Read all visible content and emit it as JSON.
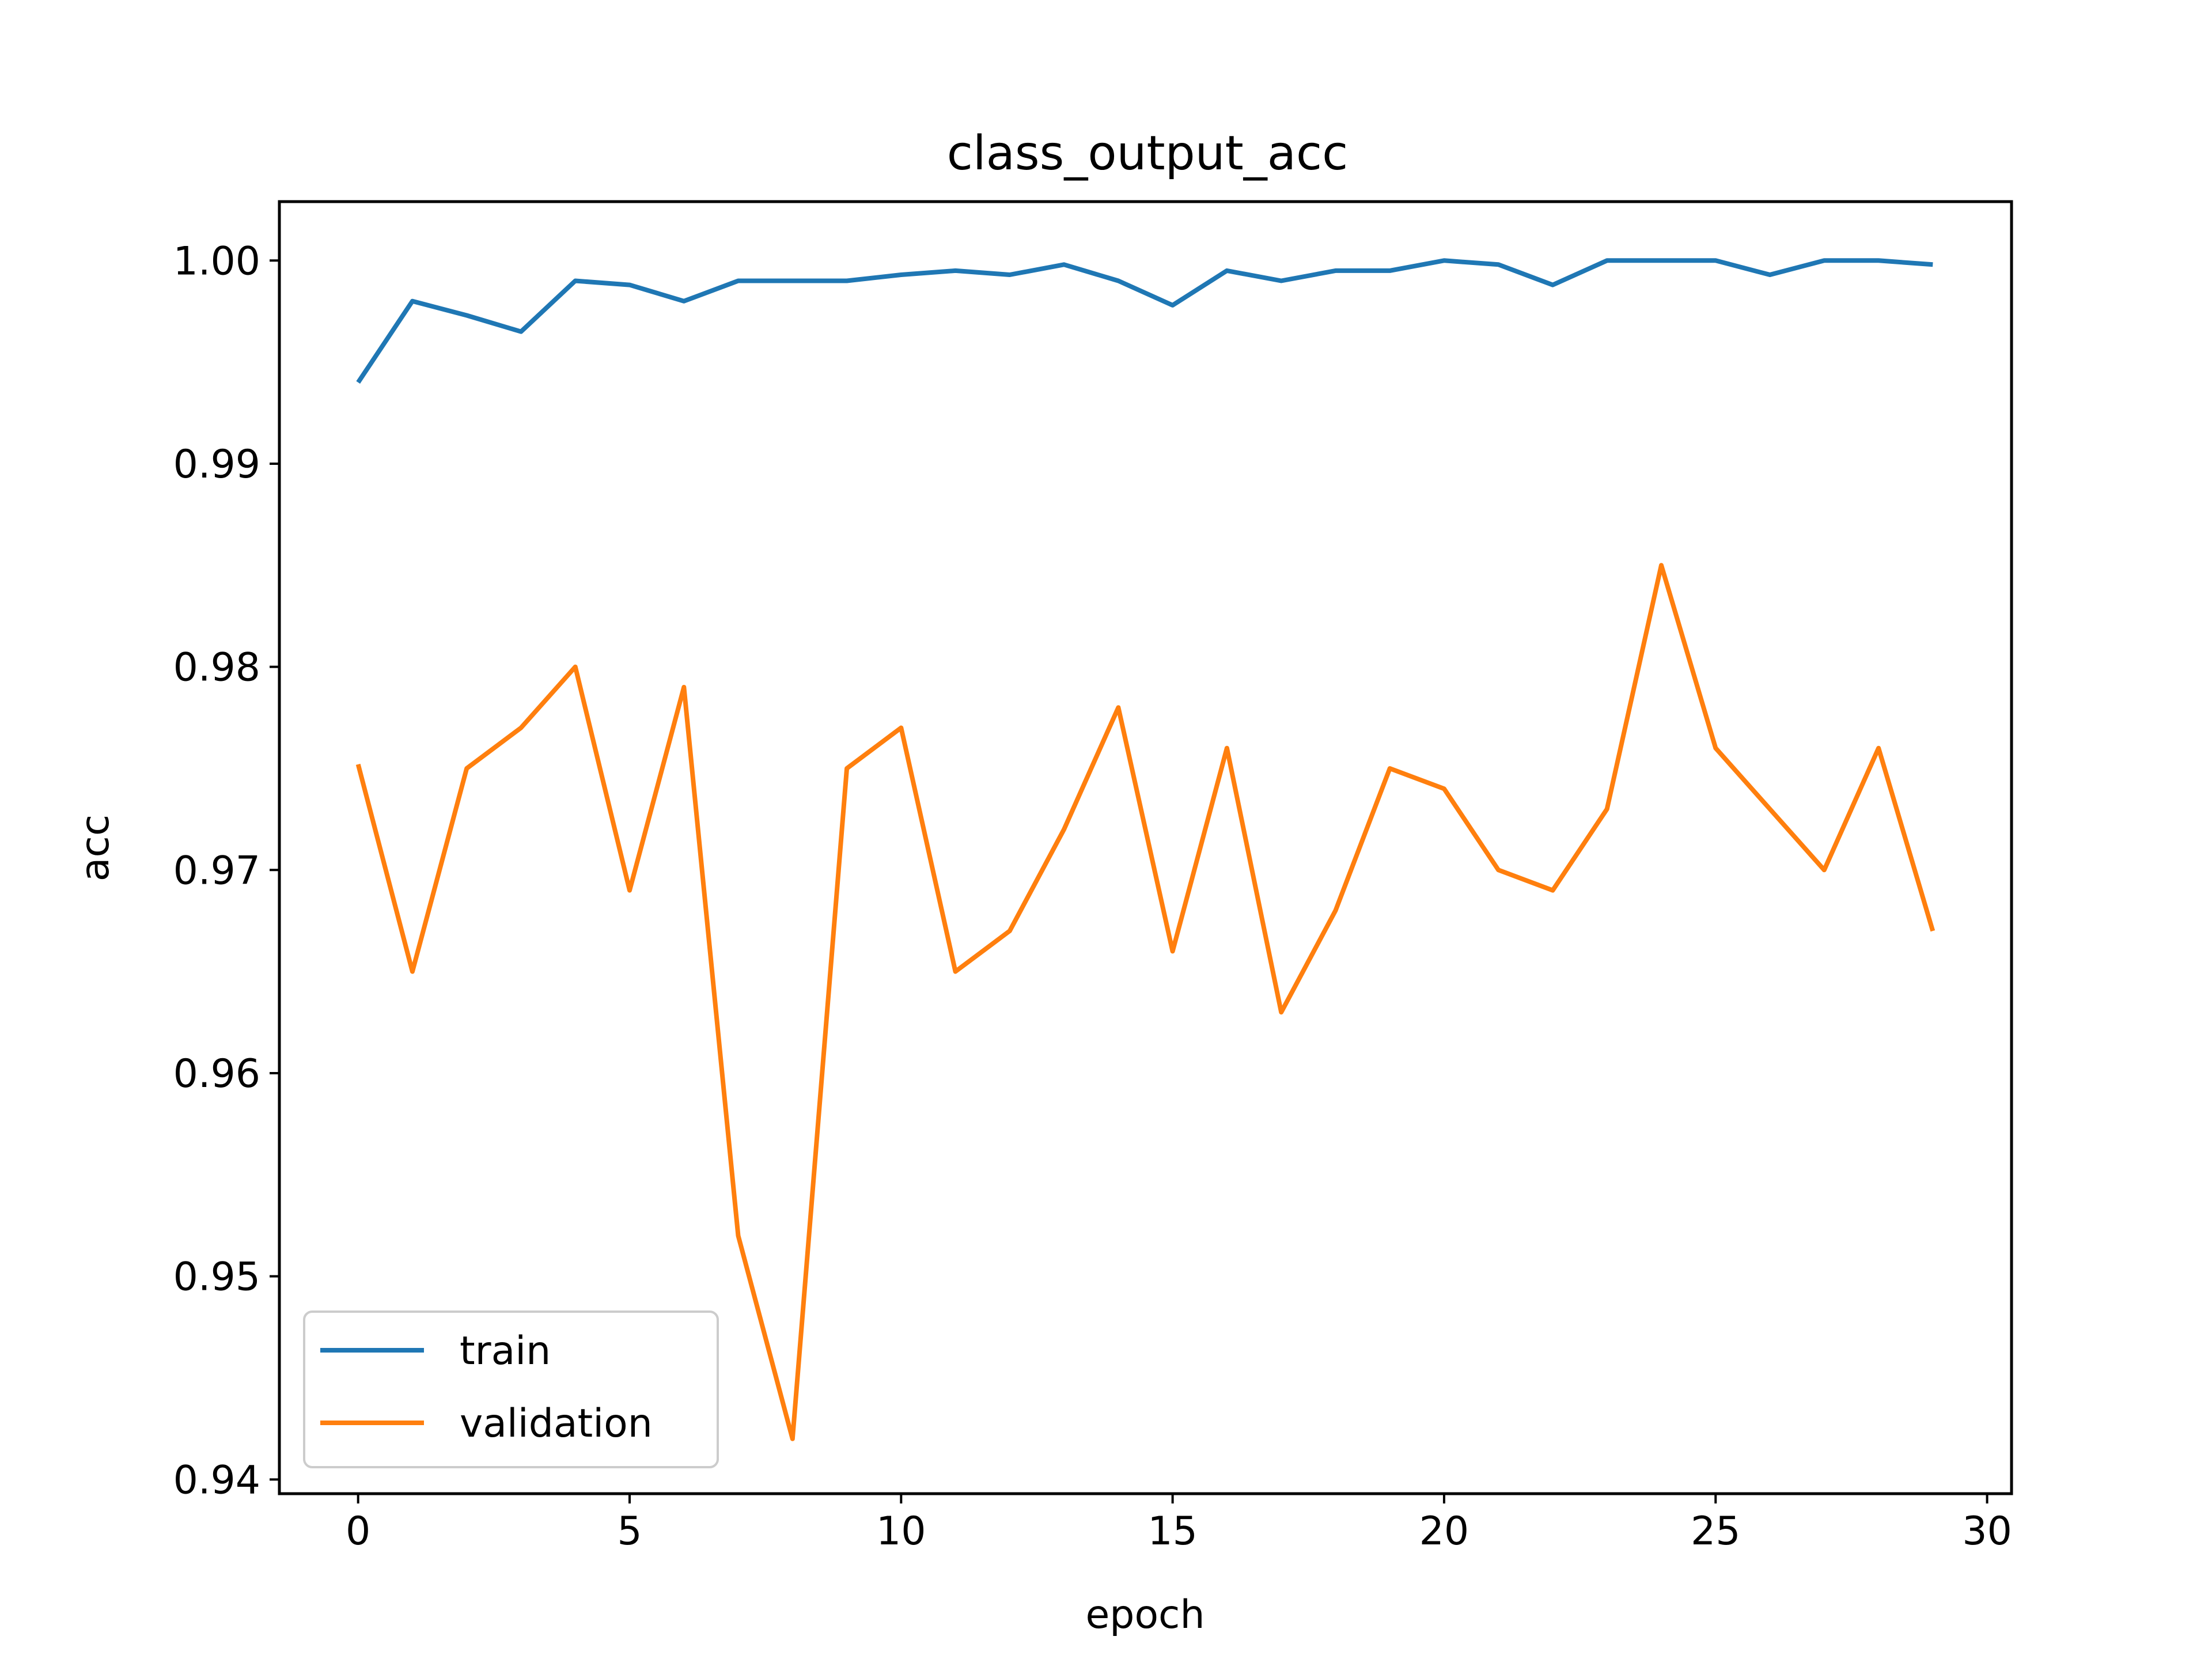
{
  "chart_data": {
    "type": "line",
    "title": "class_output_acc",
    "xlabel": "epoch",
    "ylabel": "acc",
    "xlim": [
      -1.45,
      30.45
    ],
    "ylim": [
      0.9393,
      1.0029
    ],
    "xticks": [
      0,
      5,
      10,
      15,
      20,
      25,
      30
    ],
    "xtick_labels": [
      "0",
      "5",
      "10",
      "15",
      "20",
      "25",
      "30"
    ],
    "yticks": [
      0.94,
      0.95,
      0.96,
      0.97,
      0.98,
      0.99,
      1.0
    ],
    "ytick_labels": [
      "0.94",
      "0.95",
      "0.96",
      "0.97",
      "0.98",
      "0.99",
      "1.00"
    ],
    "grid": false,
    "legend_position": "lower-left",
    "x": [
      0,
      1,
      2,
      3,
      4,
      5,
      6,
      7,
      8,
      9,
      10,
      11,
      12,
      13,
      14,
      15,
      16,
      17,
      18,
      19,
      20,
      21,
      22,
      23,
      24,
      25,
      26,
      27,
      28,
      29
    ],
    "series": [
      {
        "name": "train",
        "color": "#1f77b4",
        "values": [
          0.994,
          0.998,
          0.9973,
          0.9965,
          0.999,
          0.9988,
          0.998,
          0.999,
          0.999,
          0.999,
          0.9993,
          0.9995,
          0.9993,
          0.9998,
          0.999,
          0.9978,
          0.9995,
          0.999,
          0.9995,
          0.9995,
          1.0,
          0.9998,
          0.9988,
          1.0,
          1.0,
          1.0,
          0.9993,
          1.0,
          1.0,
          0.9998
        ]
      },
      {
        "name": "validation",
        "color": "#ff7f0e",
        "values": [
          0.9752,
          0.965,
          0.975,
          0.977,
          0.98,
          0.969,
          0.979,
          0.952,
          0.942,
          0.975,
          0.977,
          0.965,
          0.967,
          0.972,
          0.978,
          0.966,
          0.976,
          0.963,
          0.968,
          0.975,
          0.974,
          0.97,
          0.969,
          0.973,
          0.985,
          0.976,
          0.973,
          0.97,
          0.976,
          0.967
        ]
      }
    ]
  }
}
